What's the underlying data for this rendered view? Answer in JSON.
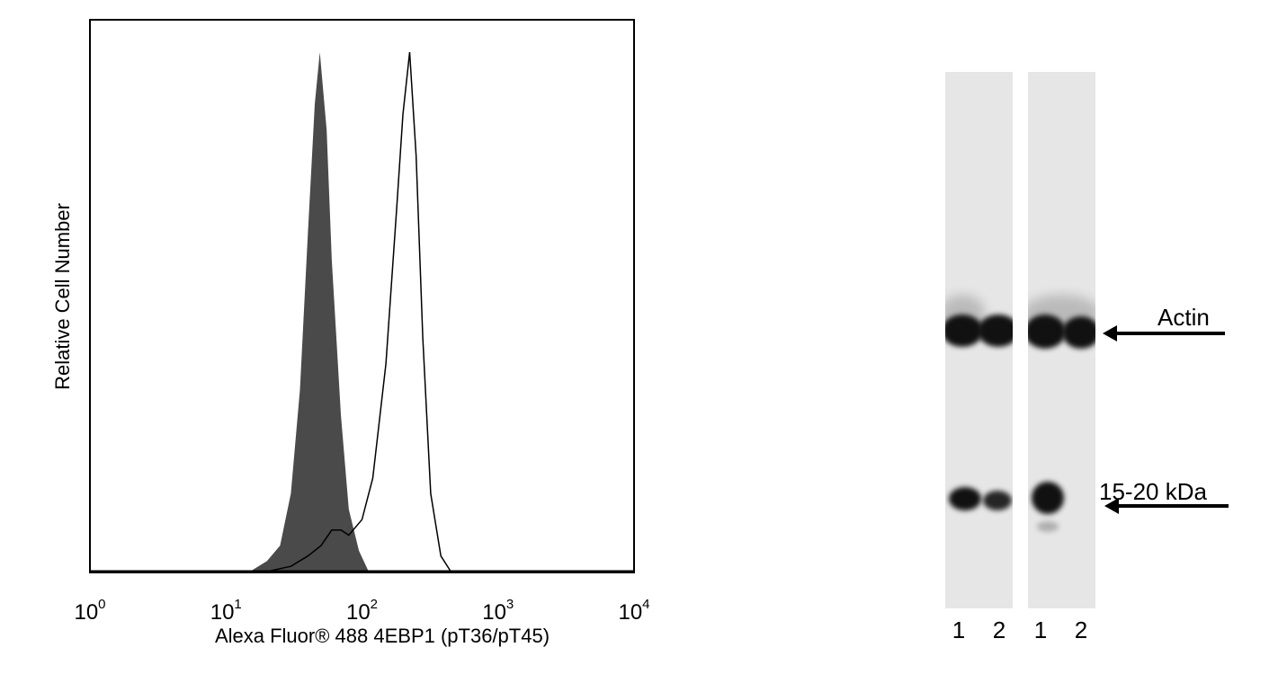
{
  "chart_data": {
    "type": "area",
    "title": "",
    "xlabel": "Alexa Fluor® 488 4EBP1 (pT36/pT45)",
    "ylabel": "Relative Cell Number",
    "x_scale": "log",
    "xlim": [
      1,
      10000
    ],
    "ylim": [
      0,
      100
    ],
    "x_ticks": [
      {
        "base": "10",
        "exp": "0"
      },
      {
        "base": "10",
        "exp": "1"
      },
      {
        "base": "10",
        "exp": "2"
      },
      {
        "base": "10",
        "exp": "3"
      },
      {
        "base": "10",
        "exp": "4"
      }
    ],
    "grid": false,
    "series": [
      {
        "style": "filled",
        "color": "#4a4a4a",
        "x": [
          15,
          20,
          25,
          30,
          35,
          40,
          45,
          49,
          55,
          60,
          70,
          80,
          95,
          112
        ],
        "y": [
          0,
          2,
          5,
          15,
          35,
          65,
          90,
          100,
          85,
          60,
          30,
          12,
          4,
          0
        ]
      },
      {
        "style": "outline",
        "color": "#000000",
        "x": [
          20,
          30,
          40,
          50,
          60,
          70,
          80,
          100,
          120,
          150,
          180,
          200,
          224,
          250,
          280,
          320,
          380,
          450
        ],
        "y": [
          0,
          1,
          3,
          5,
          8,
          8,
          7,
          10,
          18,
          40,
          70,
          88,
          100,
          80,
          45,
          15,
          3,
          0
        ]
      }
    ]
  },
  "blot": {
    "bands": [
      {
        "label": "Actin"
      },
      {
        "label": "15-20 kDa"
      }
    ],
    "lanes": [
      "1",
      "2",
      "1",
      "2"
    ]
  }
}
